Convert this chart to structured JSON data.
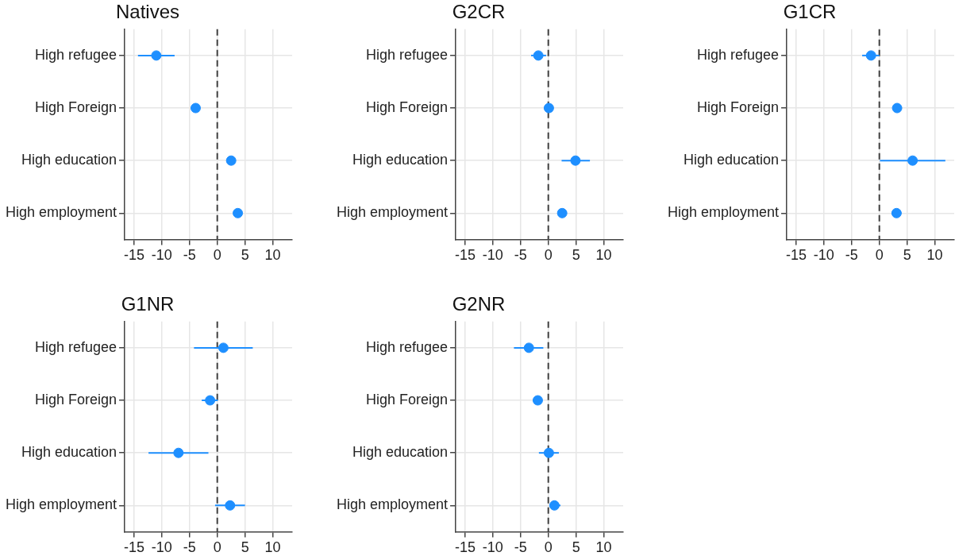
{
  "chart_data": [
    {
      "type": "scatter",
      "orientation": "horizontal",
      "title": "Natives",
      "categories": [
        "High refugee",
        "High Foreign",
        "High education",
        "High employment"
      ],
      "values": [
        -11.0,
        -3.9,
        2.5,
        3.7
      ],
      "errors": [
        [
          -14.3,
          -7.7
        ],
        null,
        null,
        null
      ],
      "color": "#1e8fff",
      "marker": "circle",
      "grid": true,
      "xlim": [
        -16.7,
        13.5
      ],
      "xticks": [
        -15,
        -10,
        -5,
        0,
        5,
        10
      ],
      "ref_lines": [
        {
          "axis": "x",
          "value": 0,
          "color": "#404040",
          "line_style": "dashed"
        }
      ]
    },
    {
      "type": "scatter",
      "orientation": "horizontal",
      "title": "G2CR",
      "categories": [
        "High refugee",
        "High Foreign",
        "High education",
        "High employment"
      ],
      "values": [
        -1.8,
        0.1,
        4.9,
        2.5
      ],
      "errors": [
        [
          -3.1,
          -0.4
        ],
        null,
        [
          2.4,
          7.5
        ],
        null
      ],
      "color": "#1e8fff",
      "marker": "circle",
      "grid": true,
      "xlim": [
        -16.7,
        13.5
      ],
      "xticks": [
        -15,
        -10,
        -5,
        0,
        5,
        10
      ],
      "ref_lines": [
        {
          "axis": "x",
          "value": 0,
          "color": "#404040",
          "line_style": "dashed"
        }
      ]
    },
    {
      "type": "scatter",
      "orientation": "horizontal",
      "title": "G1CR",
      "categories": [
        "High refugee",
        "High Foreign",
        "High education",
        "High employment"
      ],
      "values": [
        -1.5,
        3.2,
        6.0,
        3.1
      ],
      "errors": [
        [
          -3.1,
          0.0
        ],
        [
          2.6,
          3.9
        ],
        [
          0.1,
          11.9
        ],
        [
          2.2,
          4.0
        ]
      ],
      "color": "#1e8fff",
      "marker": "circle",
      "grid": true,
      "xlim": [
        -16.7,
        13.5
      ],
      "xticks": [
        -15,
        -10,
        -5,
        0,
        5,
        10
      ],
      "ref_lines": [
        {
          "axis": "x",
          "value": 0,
          "color": "#404040",
          "line_style": "dashed"
        }
      ]
    },
    {
      "type": "scatter",
      "orientation": "horizontal",
      "title": "G1NR",
      "categories": [
        "High refugee",
        "High Foreign",
        "High education",
        "High employment"
      ],
      "values": [
        1.1,
        -1.3,
        -7.0,
        2.3
      ],
      "errors": [
        [
          -4.2,
          6.4
        ],
        [
          -2.8,
          0.1
        ],
        [
          -12.4,
          -1.6
        ],
        [
          -0.4,
          5.0
        ]
      ],
      "color": "#1e8fff",
      "marker": "circle",
      "grid": true,
      "xlim": [
        -16.7,
        13.5
      ],
      "xticks": [
        -15,
        -10,
        -5,
        0,
        5,
        10
      ],
      "ref_lines": [
        {
          "axis": "x",
          "value": 0,
          "color": "#404040",
          "line_style": "dashed"
        }
      ]
    },
    {
      "type": "scatter",
      "orientation": "horizontal",
      "title": "G2NR",
      "categories": [
        "High refugee",
        "High Foreign",
        "High education",
        "High employment"
      ],
      "values": [
        -3.5,
        -1.9,
        0.1,
        1.1
      ],
      "errors": [
        [
          -6.2,
          -0.9
        ],
        null,
        [
          -1.7,
          1.9
        ],
        [
          0.3,
          2.2
        ]
      ],
      "color": "#1e8fff",
      "marker": "circle",
      "grid": true,
      "xlim": [
        -16.7,
        13.5
      ],
      "xticks": [
        -15,
        -10,
        -5,
        0,
        5,
        10
      ],
      "ref_lines": [
        {
          "axis": "x",
          "value": 0,
          "color": "#404040",
          "line_style": "dashed"
        }
      ]
    }
  ]
}
